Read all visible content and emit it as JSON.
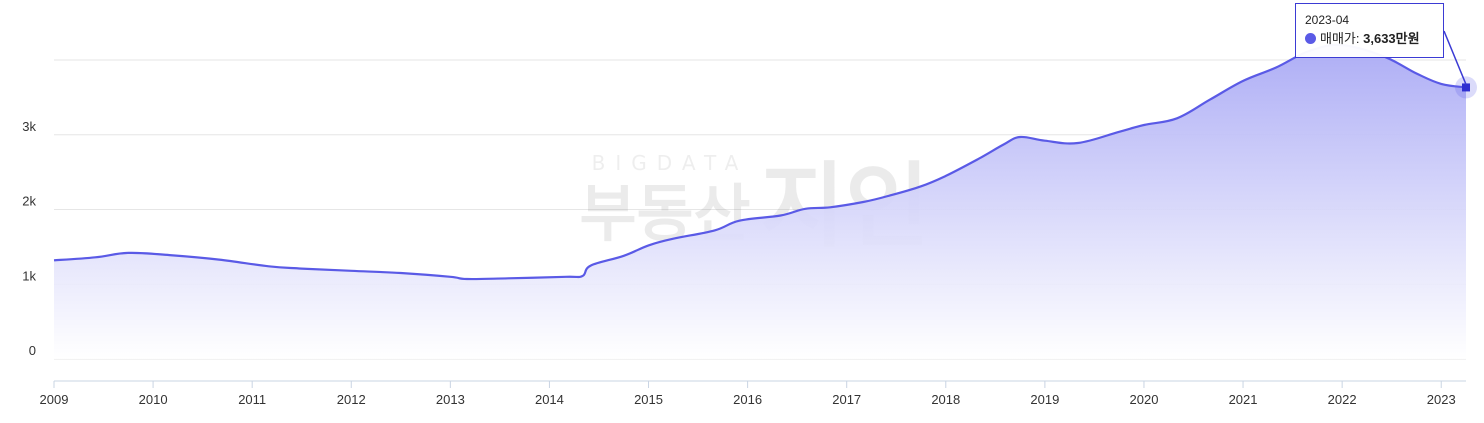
{
  "chart_data": {
    "type": "area",
    "series": [
      {
        "name": "매매가",
        "color": "#5a5ae6",
        "points": [
          [
            "2009-01",
            1320
          ],
          [
            "2009-06",
            1360
          ],
          [
            "2009-10",
            1420
          ],
          [
            "2010-03",
            1390
          ],
          [
            "2010-09",
            1330
          ],
          [
            "2011-03",
            1240
          ],
          [
            "2011-07",
            1210
          ],
          [
            "2012-01",
            1180
          ],
          [
            "2012-07",
            1150
          ],
          [
            "2013-01",
            1100
          ],
          [
            "2013-03",
            1070
          ],
          [
            "2013-08",
            1080
          ],
          [
            "2014-03",
            1100
          ],
          [
            "2014-05",
            1110
          ],
          [
            "2014-06",
            1250
          ],
          [
            "2014-10",
            1380
          ],
          [
            "2015-01",
            1520
          ],
          [
            "2015-04",
            1610
          ],
          [
            "2015-09",
            1720
          ],
          [
            "2015-12",
            1850
          ],
          [
            "2016-05",
            1920
          ],
          [
            "2016-08",
            2010
          ],
          [
            "2016-11",
            2030
          ],
          [
            "2017-03",
            2100
          ],
          [
            "2017-06",
            2180
          ],
          [
            "2017-10",
            2310
          ],
          [
            "2018-01",
            2450
          ],
          [
            "2018-05",
            2680
          ],
          [
            "2018-08",
            2870
          ],
          [
            "2018-10",
            2970
          ],
          [
            "2019-01",
            2920
          ],
          [
            "2019-05",
            2890
          ],
          [
            "2019-10",
            3040
          ],
          [
            "2020-01",
            3130
          ],
          [
            "2020-05",
            3220
          ],
          [
            "2020-09",
            3470
          ],
          [
            "2021-01",
            3720
          ],
          [
            "2021-05",
            3900
          ],
          [
            "2021-09",
            4120
          ],
          [
            "2022-01",
            4200
          ],
          [
            "2022-06",
            4050
          ],
          [
            "2022-10",
            3820
          ],
          [
            "2023-01",
            3680
          ],
          [
            "2023-04",
            3633
          ]
        ]
      }
    ],
    "x_ticks": [
      "2009",
      "2010",
      "2011",
      "2012",
      "2013",
      "2014",
      "2015",
      "2016",
      "2017",
      "2018",
      "2019",
      "2020",
      "2021",
      "2022",
      "2023"
    ],
    "y_ticks": [
      "0",
      "1k",
      "2k",
      "3k"
    ],
    "ylim": [
      0,
      4000
    ],
    "xlim": [
      "2009-01",
      "2023-04"
    ],
    "grid": true,
    "title": "",
    "xlabel": "",
    "ylabel": "",
    "tooltip": {
      "date": "2023-04",
      "label": "매매가:",
      "value": "3,633만원"
    },
    "watermark": {
      "top": "BIGDATA",
      "left": "부동산",
      "right": "지인"
    }
  }
}
